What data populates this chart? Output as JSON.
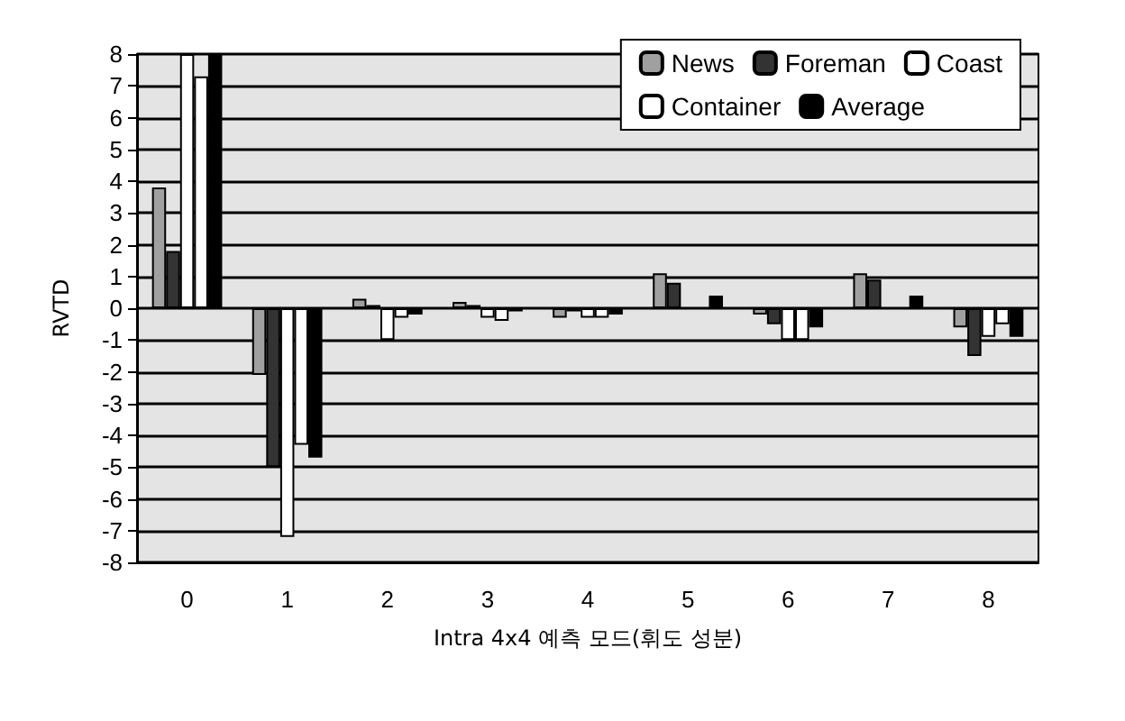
{
  "chart_data": {
    "type": "bar",
    "xlabel": "Intra 4x4 예측 모드(휘도 성분)",
    "ylabel": "RVTD",
    "categories": [
      "0",
      "1",
      "2",
      "3",
      "4",
      "5",
      "6",
      "7",
      "8"
    ],
    "series": [
      {
        "name": "News",
        "color": "#a0a0a0",
        "values": [
          3.8,
          -2.1,
          0.3,
          0.2,
          -0.3,
          1.1,
          -0.2,
          1.1,
          -0.6
        ]
      },
      {
        "name": "Foreman",
        "color": "#333333",
        "values": [
          1.8,
          -5,
          0.1,
          0.1,
          -0.1,
          0.8,
          -0.5,
          0.9,
          -1.5
        ]
      },
      {
        "name": "Coast",
        "color": "#ffffff",
        "values": [
          8,
          -7.2,
          -1,
          -0.3,
          -0.3,
          null,
          -1,
          null,
          -0.9
        ]
      },
      {
        "name": "Container",
        "color": "#ffffff",
        "values": [
          7.3,
          -4.3,
          -0.3,
          -0.4,
          -0.3,
          null,
          -1,
          null,
          -0.5
        ]
      },
      {
        "name": "Average",
        "color": "#000000",
        "values": [
          8,
          -4.7,
          -0.2,
          -0.1,
          -0.2,
          0.4,
          -0.6,
          0.4,
          -0.9
        ]
      }
    ],
    "ylim": [
      -8,
      8
    ],
    "yticks": [
      -8,
      -7,
      -6,
      -5,
      -4,
      -3,
      -2,
      -1,
      0,
      1,
      2,
      3,
      4,
      5,
      6,
      7,
      8
    ],
    "grid": "y",
    "legend": "top right"
  }
}
